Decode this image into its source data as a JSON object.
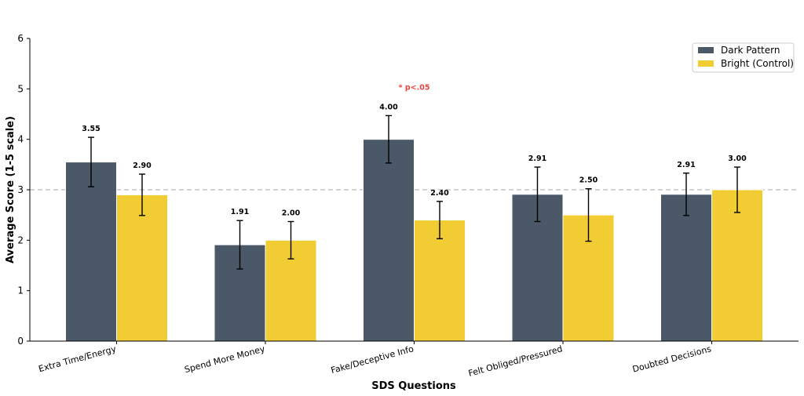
{
  "chart_data": {
    "type": "bar",
    "title": "",
    "xlabel": "SDS Questions",
    "ylabel": "Average Score (1-5 scale)",
    "ylim": [
      0,
      6
    ],
    "yticks": [
      "0",
      "1",
      "2",
      "3",
      "4",
      "5",
      "6"
    ],
    "reference_line": 3,
    "categories": [
      "Extra Time/Energy",
      "Spend More Money",
      "Fake/Deceptive Info",
      "Felt Obliged/Pressured",
      "Doubted Decisions"
    ],
    "series": [
      {
        "name": "Dark Pattern",
        "color": "#4a5868",
        "values": [
          3.55,
          1.91,
          4.0,
          2.91,
          2.91
        ],
        "errors": [
          0.49,
          0.48,
          0.47,
          0.54,
          0.42
        ],
        "labels": [
          "3.55",
          "1.91",
          "4.00",
          "2.91",
          "2.91"
        ]
      },
      {
        "name": "Bright (Control)",
        "color": "#f1cc32",
        "values": [
          2.9,
          2.0,
          2.4,
          2.5,
          3.0
        ],
        "errors": [
          0.41,
          0.37,
          0.37,
          0.52,
          0.45
        ],
        "labels": [
          "2.90",
          "2.00",
          "2.40",
          "2.50",
          "3.00"
        ]
      }
    ],
    "annotations": [
      {
        "text": "* p<.05",
        "category_index": 2,
        "color": "#e8453c"
      }
    ],
    "grid": false,
    "legend_position": "top-right"
  }
}
